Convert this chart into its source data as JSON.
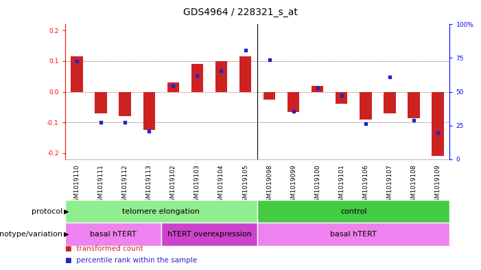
{
  "title": "GDS4964 / 228321_s_at",
  "samples": [
    "GSM1019110",
    "GSM1019111",
    "GSM1019112",
    "GSM1019113",
    "GSM1019102",
    "GSM1019103",
    "GSM1019104",
    "GSM1019105",
    "GSM1019098",
    "GSM1019099",
    "GSM1019100",
    "GSM1019101",
    "GSM1019106",
    "GSM1019107",
    "GSM1019108",
    "GSM1019109"
  ],
  "red_values": [
    0.115,
    -0.07,
    -0.08,
    -0.125,
    0.03,
    0.09,
    0.1,
    0.115,
    -0.025,
    -0.065,
    0.02,
    -0.04,
    -0.09,
    -0.07,
    -0.085,
    -0.21
  ],
  "blue_percentile": [
    75,
    25,
    25,
    18,
    55,
    63,
    67,
    84,
    76,
    34,
    53,
    47,
    24,
    62,
    27,
    17
  ],
  "protocol_groups": [
    {
      "label": "telomere elongation",
      "start": 0,
      "end": 7,
      "color": "#90ee90"
    },
    {
      "label": "control",
      "start": 8,
      "end": 15,
      "color": "#44cc44"
    }
  ],
  "genotype_groups": [
    {
      "label": "basal hTERT",
      "start": 0,
      "end": 3,
      "color": "#ee82ee"
    },
    {
      "label": "hTERT overexpression",
      "start": 4,
      "end": 7,
      "color": "#cc44cc"
    },
    {
      "label": "basal hTERT",
      "start": 8,
      "end": 15,
      "color": "#ee82ee"
    }
  ],
  "ylim": [
    -0.22,
    0.22
  ],
  "yticks_left": [
    -0.2,
    -0.1,
    0.0,
    0.1,
    0.2
  ],
  "yticks_right": [
    0,
    25,
    50,
    75,
    100
  ],
  "right_ylim": [
    0,
    100
  ],
  "legend_items": [
    {
      "label": "transformed count",
      "color": "#cc2222"
    },
    {
      "label": "percentile rank within the sample",
      "color": "#2222cc"
    }
  ],
  "bar_color": "#cc2222",
  "dot_color": "#2222cc",
  "bg_color": "#ffffff",
  "zero_line_color": "#cc2222",
  "title_fontsize": 10,
  "tick_fontsize": 6.5,
  "bar_width": 0.5
}
